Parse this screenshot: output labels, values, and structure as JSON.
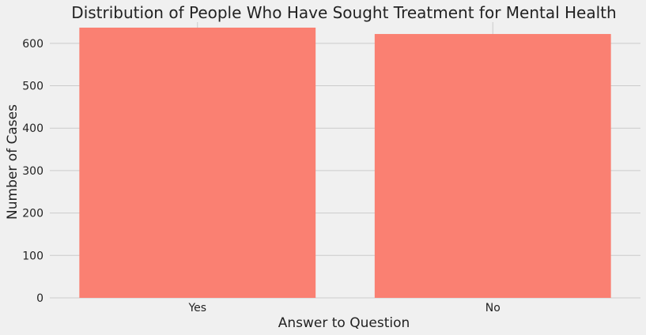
{
  "chart_data": {
    "type": "bar",
    "title": "Distribution of People Who Have Sought Treatment for Mental Health",
    "xlabel": "Answer to Question",
    "ylabel": "Number of Cases",
    "categories": [
      "Yes",
      "No"
    ],
    "values": [
      637,
      622
    ],
    "ylim": [
      0,
      650
    ],
    "yticks": [
      0,
      100,
      200,
      300,
      400,
      500,
      600
    ],
    "grid": true,
    "colors": {
      "bar": "#fa8072",
      "background": "#f0f0f0",
      "grid": "#cbcbcb",
      "text": "#222222"
    }
  }
}
